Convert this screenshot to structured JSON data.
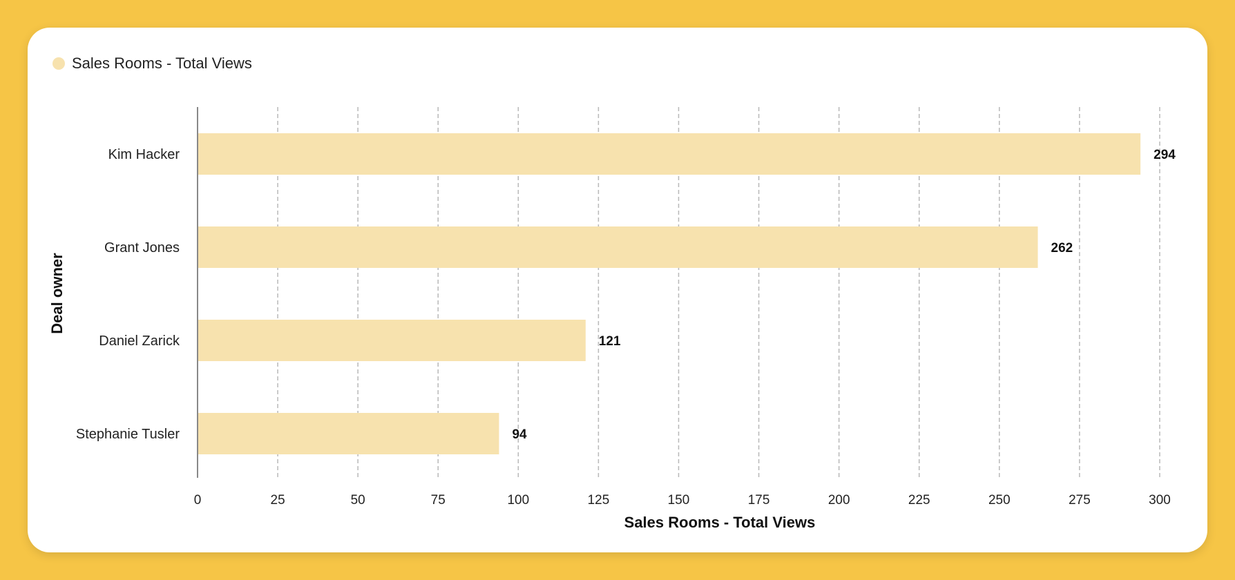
{
  "colors": {
    "background": "#f6c546",
    "card": "#ffffff",
    "bar": "#f7e2ae",
    "gridline": "#b8b8b8",
    "axis": "#888888"
  },
  "legend": {
    "label": "Sales Rooms - Total Views"
  },
  "chart_data": {
    "type": "bar",
    "orientation": "horizontal",
    "categories": [
      "Kim Hacker",
      "Grant Jones",
      "Daniel Zarick",
      "Stephanie Tusler"
    ],
    "series": [
      {
        "name": "Sales Rooms - Total Views",
        "values": [
          294,
          262,
          121,
          94
        ]
      }
    ],
    "xlabel": "Sales Rooms - Total Views",
    "ylabel": "Deal owner",
    "xlim": [
      0,
      300
    ],
    "xticks": [
      0,
      25,
      50,
      75,
      100,
      125,
      150,
      175,
      200,
      225,
      250,
      275,
      300
    ],
    "grid": "vertical dashed",
    "legend_position": "top-left",
    "data_labels": true
  }
}
